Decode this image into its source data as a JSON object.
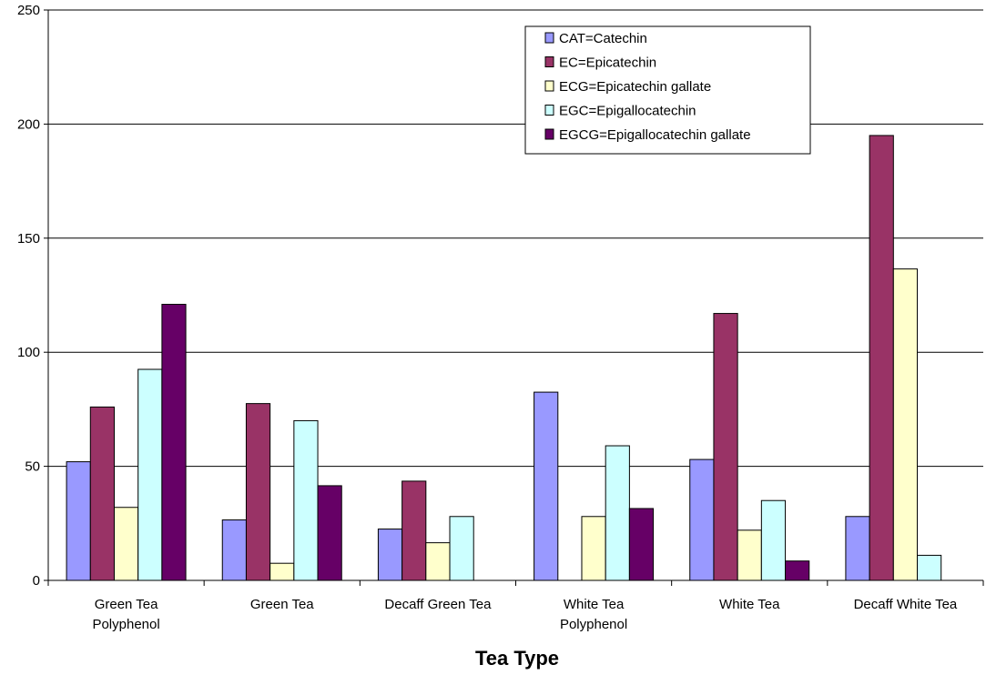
{
  "chart_data": {
    "type": "bar",
    "title": "",
    "xlabel": "Tea Type",
    "ylabel": "",
    "ylim": [
      0,
      250
    ],
    "yticks": [
      0,
      50,
      100,
      150,
      200,
      250
    ],
    "grid": true,
    "legend_position": "top-right",
    "categories": [
      [
        "Green Tea",
        "Polyphenol"
      ],
      [
        "Green Tea"
      ],
      [
        "Decaff Green Tea"
      ],
      [
        "White Tea",
        "Polyphenol"
      ],
      [
        "White Tea"
      ],
      [
        "Decaff White Tea"
      ]
    ],
    "series": [
      {
        "name": "CAT=Catechin",
        "color": "#9999FF",
        "values": [
          52,
          26.5,
          22.5,
          82.5,
          53,
          28
        ]
      },
      {
        "name": "EC=Epicatechin",
        "color": "#993366",
        "values": [
          76,
          77.5,
          43.5,
          null,
          117,
          195
        ]
      },
      {
        "name": "ECG=Epicatechin gallate",
        "color": "#FFFFCC",
        "values": [
          32,
          7.5,
          16.5,
          28,
          22,
          136.5
        ]
      },
      {
        "name": "EGC=Epigallocatechin",
        "color": "#CCFFFF",
        "values": [
          92.5,
          70,
          28,
          59,
          35,
          11
        ]
      },
      {
        "name": "EGCG=Epigallocatechin gallate",
        "color": "#660066",
        "values": [
          121,
          41.5,
          null,
          31.5,
          8.5,
          null
        ]
      }
    ]
  }
}
